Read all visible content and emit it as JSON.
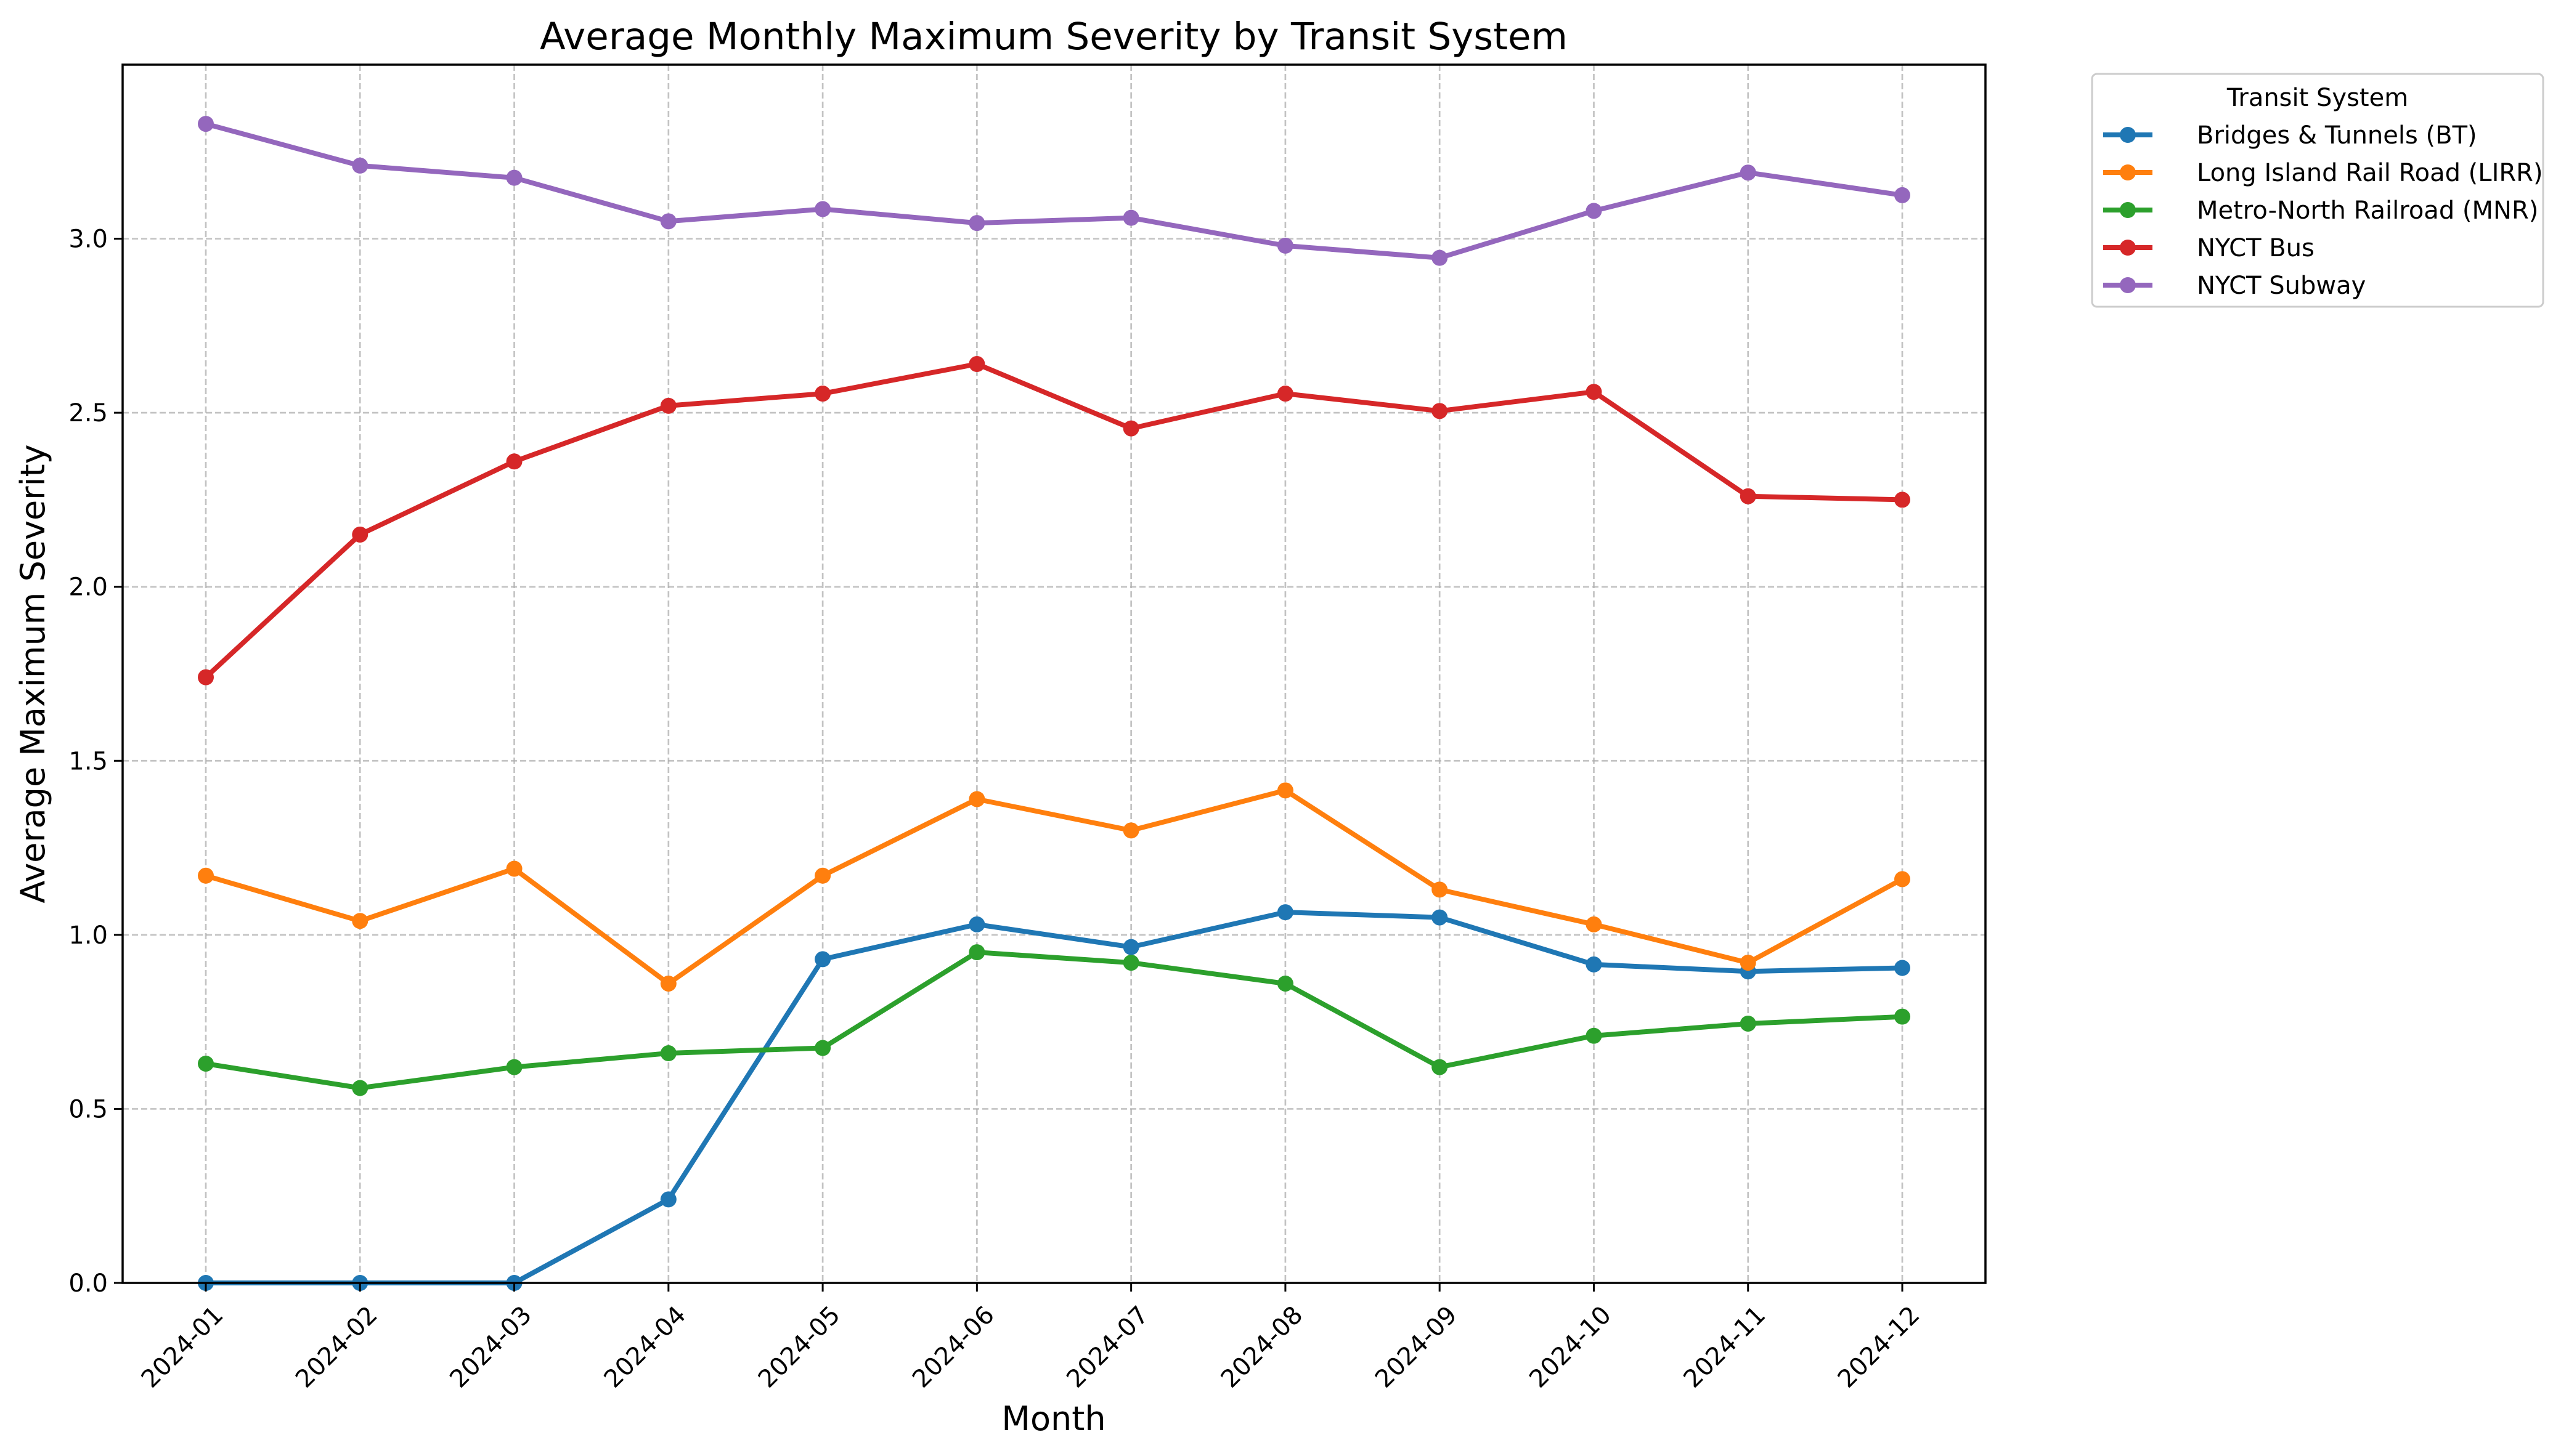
{
  "chart_data": {
    "type": "line",
    "title": "Average Monthly Maximum Severity by Transit System",
    "xlabel": "Month",
    "ylabel": "Average Maximum Severity",
    "x": [
      "2024-01",
      "2024-02",
      "2024-03",
      "2024-04",
      "2024-05",
      "2024-06",
      "2024-07",
      "2024-08",
      "2024-09",
      "2024-10",
      "2024-11",
      "2024-12"
    ],
    "ylim": [
      0,
      3.5
    ],
    "yticks": [
      "0.0",
      "0.5",
      "1.0",
      "1.5",
      "2.0",
      "2.5",
      "3.0"
    ],
    "grid": true,
    "legend": {
      "title": "Transit System",
      "placement": "outside-top-right"
    },
    "series": [
      {
        "name": "Bridges & Tunnels (BT)",
        "color": "#1f77b4",
        "values": [
          0.0,
          0.0,
          0.0,
          0.24,
          0.93,
          1.03,
          0.965,
          1.065,
          1.05,
          0.915,
          0.895,
          0.905
        ]
      },
      {
        "name": "Long Island Rail Road (LIRR)",
        "color": "#ff7f0e",
        "values": [
          1.17,
          1.04,
          1.19,
          0.86,
          1.17,
          1.39,
          1.3,
          1.415,
          1.13,
          1.03,
          0.92,
          1.16
        ]
      },
      {
        "name": "Metro-North Railroad (MNR)",
        "color": "#2ca02c",
        "values": [
          0.63,
          0.56,
          0.62,
          0.66,
          0.675,
          0.95,
          0.92,
          0.86,
          0.62,
          0.71,
          0.745,
          0.765
        ]
      },
      {
        "name": "NYCT Bus",
        "color": "#d62728",
        "values": [
          1.74,
          2.15,
          2.36,
          2.52,
          2.555,
          2.64,
          2.455,
          2.555,
          2.505,
          2.56,
          2.26,
          2.25
        ]
      },
      {
        "name": "NYCT Subway",
        "color": "#9467bd",
        "values": [
          3.33,
          3.21,
          3.175,
          3.05,
          3.085,
          3.045,
          3.06,
          2.98,
          2.945,
          3.08,
          3.19,
          3.125
        ]
      }
    ]
  }
}
